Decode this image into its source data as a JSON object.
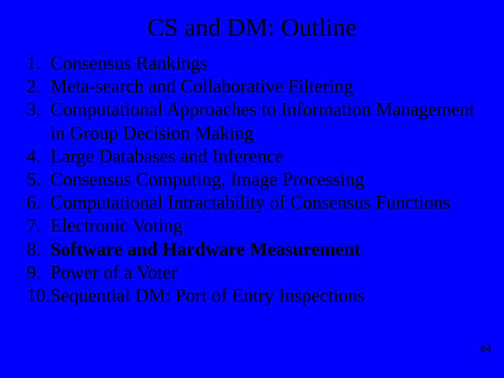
{
  "background_color": "#0000ff",
  "text_color": "#000000",
  "title": "CS and DM: Outline",
  "title_fontsize": 36,
  "body_fontsize": 27,
  "font_family": "Times New Roman",
  "page_number": "64",
  "items": [
    {
      "n": "1.",
      "text": "Consensus Rankings",
      "bold": false
    },
    {
      "n": "2.",
      "text": "Meta-search and Collaborative Filtering",
      "bold": false
    },
    {
      "n": "3.",
      "text": "Computational Approaches to Information Management in Group Decision Making",
      "bold": false
    },
    {
      "n": "4.",
      "text": "Large Databases and Inference",
      "bold": false
    },
    {
      "n": "5.",
      "text": "Consensus Computing, Image Processing",
      "bold": false
    },
    {
      "n": "6.",
      "text": "Computational Intractability of Consensus Functions",
      "bold": false
    },
    {
      "n": "7.",
      "text": "Electronic Voting",
      "bold": false
    },
    {
      "n": "8.",
      "text": "Software and Hardware Measurement",
      "bold": true
    },
    {
      "n": "9.",
      "text": "Power of a Voter",
      "bold": false
    },
    {
      "n": "10.",
      "text": "Sequential DM: Port of Entry Inspections",
      "bold": false
    }
  ]
}
